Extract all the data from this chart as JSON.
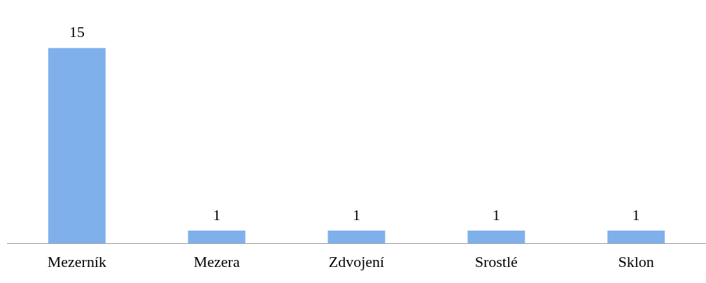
{
  "chart_data": {
    "type": "bar",
    "categories": [
      "Mezerník",
      "Mezera",
      "Zdvojení",
      "Srostlé",
      "Sklon"
    ],
    "values": [
      15,
      1,
      1,
      1,
      1
    ],
    "color": "#7fb0ec",
    "data_labels": true,
    "grid": false,
    "legend": false
  }
}
